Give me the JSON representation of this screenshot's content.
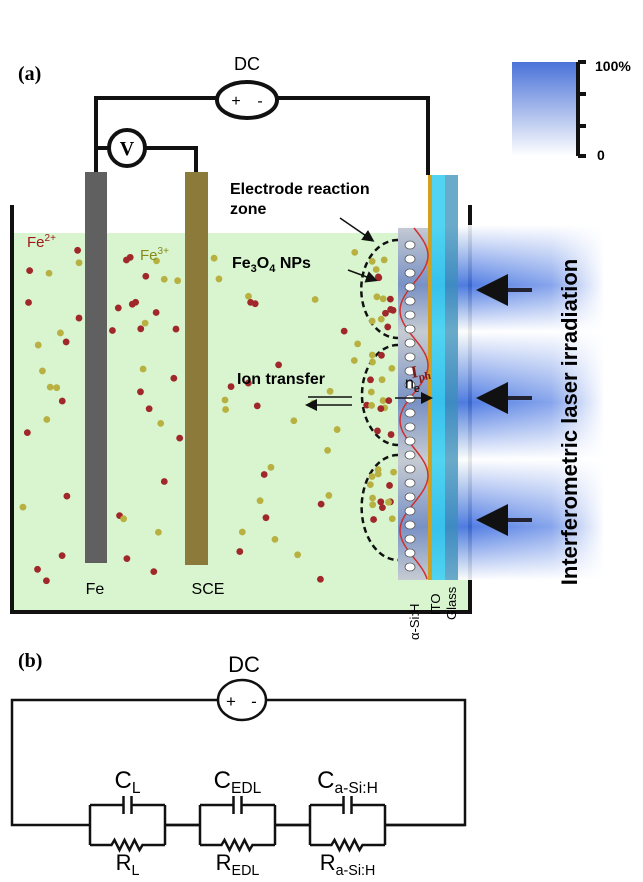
{
  "panel_a": {
    "label": "(a)",
    "dc": {
      "label": "DC",
      "plus": "+",
      "minus": "-"
    },
    "voltmeter": "V",
    "zone": {
      "line1": "Electrode reaction",
      "line2": "zone"
    },
    "fe2": {
      "base": "Fe",
      "sup": "2+"
    },
    "fe3": {
      "base": "Fe",
      "sup": "3+"
    },
    "nps": [
      "Fe",
      "3",
      "O",
      "4",
      " NPs"
    ],
    "ion_transfer": "Ion transfer",
    "iph": {
      "base": "I",
      "sub": "ph"
    },
    "ne": {
      "base": "n",
      "sub": "e"
    },
    "electrodes": [
      "Fe",
      "SCE"
    ],
    "layers": [
      "α-Si:H",
      "ITO",
      "Glass"
    ],
    "laser": "Interferometric laser irradiation",
    "colorbar": {
      "top": "100%",
      "bottom": "0"
    }
  },
  "panel_b": {
    "label": "(b)",
    "dc": {
      "label": "DC",
      "plus": "+",
      "minus": "-"
    },
    "elements": [
      {
        "c": {
          "base": "C",
          "sub": "L"
        },
        "r": {
          "base": "R",
          "sub": "L"
        }
      },
      {
        "c": {
          "base": "C",
          "sub": "EDL"
        },
        "r": {
          "base": "R",
          "sub": "EDL"
        }
      },
      {
        "c": {
          "base": "C",
          "sub": "a-Si:H"
        },
        "r": {
          "base": "R",
          "sub": "a-Si:H"
        }
      }
    ]
  }
}
